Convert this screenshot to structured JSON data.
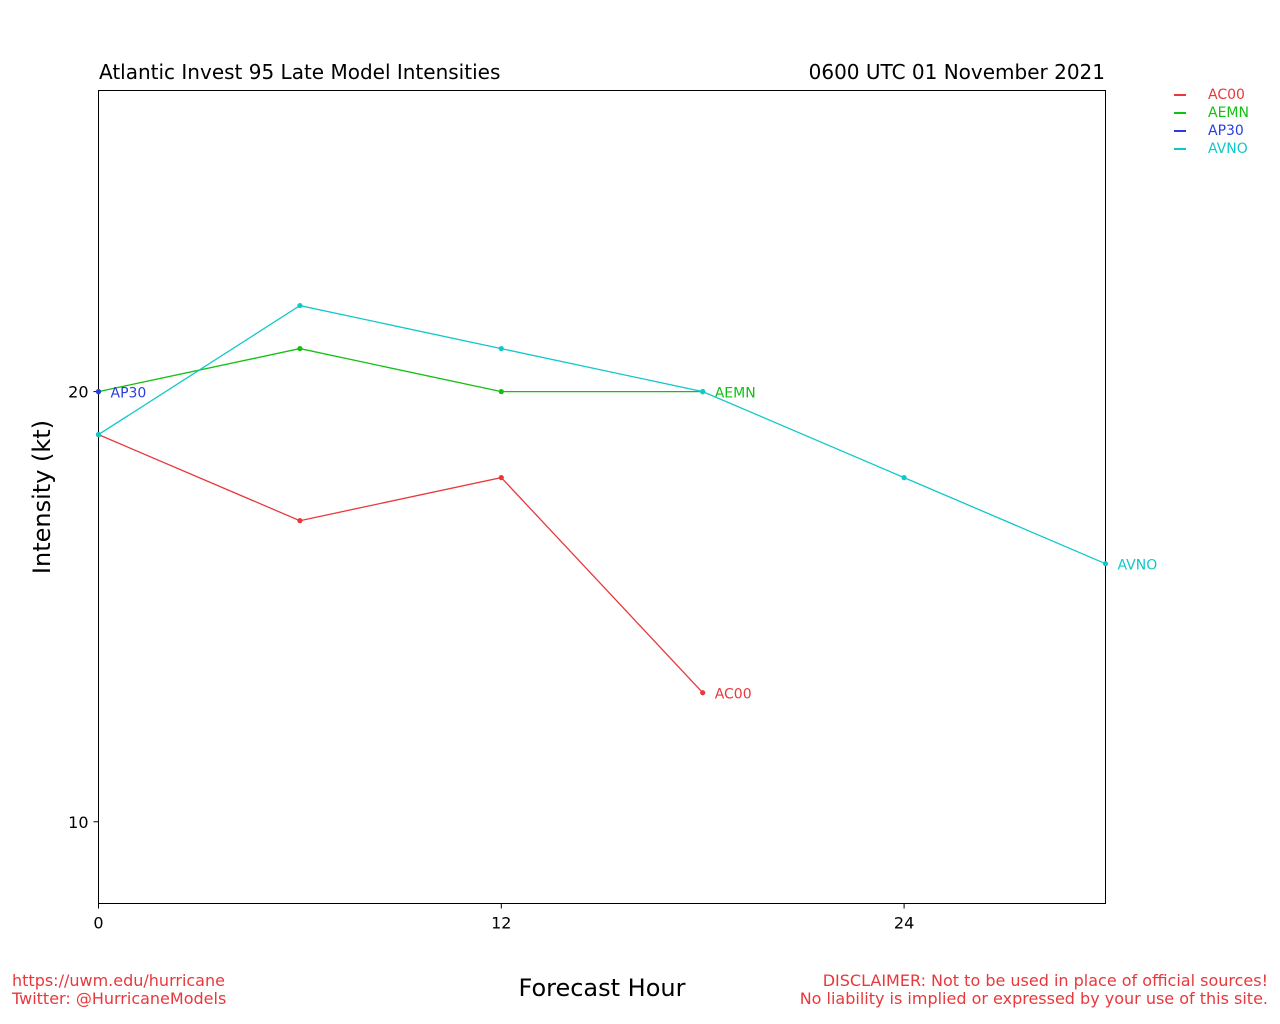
{
  "header": {
    "title_left": "Atlantic Invest 95 Late Model Intensities",
    "title_right": "0600 UTC 01 November 2021"
  },
  "footer": {
    "url": "https://uwm.edu/hurricane",
    "twitter": "Twitter: @HurricaneModels",
    "disclaimer_line1": "DISCLAIMER: Not to be used in place of official sources!",
    "disclaimer_line2": "No liability is implied or expressed by your use of this site."
  },
  "chart_data": {
    "type": "line",
    "title": "Atlantic Invest 95 Late Model Intensities",
    "subtitle": "0600 UTC 01 November 2021",
    "xlabel": "Forecast Hour",
    "ylabel": "Intensity (kt)",
    "xlim": [
      0,
      30
    ],
    "ylim": [
      8.1,
      27
    ],
    "xticks": [
      0,
      12,
      24
    ],
    "yticks": [
      10,
      20
    ],
    "grid": false,
    "legend_position": "top-right outside",
    "series": [
      {
        "name": "AC00",
        "color": "#e8383b",
        "x": [
          0,
          6,
          12,
          18
        ],
        "y": [
          19,
          17,
          18,
          13
        ]
      },
      {
        "name": "AEMN",
        "color": "#11c011",
        "x": [
          0,
          6,
          12,
          18
        ],
        "y": [
          20,
          21,
          20,
          20
        ]
      },
      {
        "name": "AP30",
        "color": "#2a3ee0",
        "x": [
          0
        ],
        "y": [
          20
        ]
      },
      {
        "name": "AVNO",
        "color": "#10c8c8",
        "x": [
          0,
          6,
          12,
          18,
          24,
          30
        ],
        "y": [
          19,
          22,
          21,
          20,
          18,
          16
        ]
      }
    ]
  }
}
